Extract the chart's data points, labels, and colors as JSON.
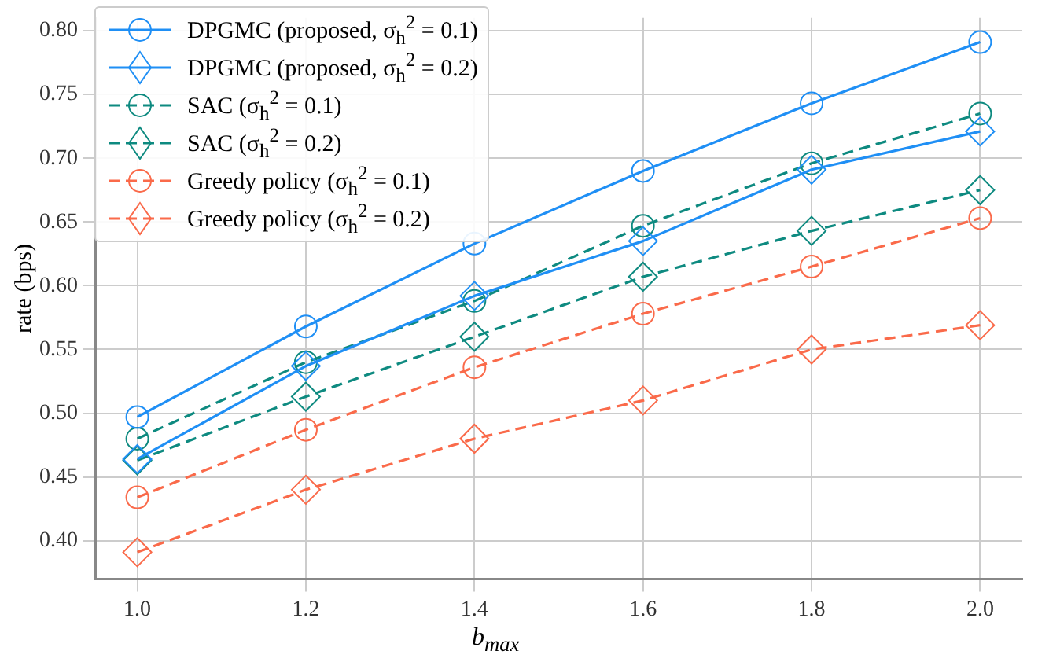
{
  "chart_data": {
    "type": "line",
    "xlabel": "b$_{max}$",
    "ylabel": "rate (bps)",
    "x": [
      1.0,
      1.2,
      1.4,
      1.6,
      1.8,
      2.0
    ],
    "xlim": [
      0.95,
      2.05
    ],
    "xticks": [
      {
        "value": 1.0,
        "label": "1.0"
      },
      1.2,
      1.4,
      1.6,
      1.8,
      {
        "value": 2.0,
        "label": "2.0"
      }
    ],
    "ylim": [
      0.37,
      0.81
    ],
    "yticks": [
      {
        "value": 0.4,
        "label": "0.40"
      },
      0.45,
      {
        "value": 0.5,
        "label": "0.50"
      },
      0.55,
      {
        "value": 0.6,
        "label": "0.60"
      },
      0.65,
      {
        "value": 0.7,
        "label": "0.70"
      },
      0.75,
      {
        "value": 0.8,
        "label": "0.80"
      }
    ],
    "grid": true,
    "legend": "top left",
    "series": [
      {
        "name": "DPGMC (proposed, σ$_{h}$$^{2}$ = 0.1)",
        "color": "#1f8ff5",
        "marker": "circle",
        "line_style": "solid",
        "values": [
          0.497,
          0.568,
          0.633,
          0.69,
          0.743,
          0.791
        ]
      },
      {
        "name": "DPGMC (proposed, σ$_{h}$$^{2}$ = 0.2)",
        "color": "#1f8ff5",
        "marker": "diamond",
        "line_style": "solid",
        "values": [
          0.464,
          0.537,
          0.592,
          0.635,
          0.691,
          0.721
        ]
      },
      {
        "name": "SAC (σ$_{h}$$^{2}$ = 0.1)",
        "color": "#0e8a80",
        "marker": "circle",
        "line_style": "dashed",
        "values": [
          0.48,
          0.54,
          0.588,
          0.647,
          0.696,
          0.735
        ]
      },
      {
        "name": "SAC (σ$_{h}$$^{2}$ = 0.2)",
        "color": "#0e8a80",
        "marker": "diamond",
        "line_style": "dashed",
        "values": [
          0.463,
          0.513,
          0.56,
          0.607,
          0.643,
          0.675
        ]
      },
      {
        "name": "Greedy policy (σ$_{h}$$^{2}$ = 0.1)",
        "color": "#fa6a4a",
        "marker": "circle",
        "line_style": "dashed",
        "values": [
          0.434,
          0.487,
          0.536,
          0.578,
          0.615,
          0.653
        ]
      },
      {
        "name": "Greedy policy (σ$_{h}$$^{2}$ = 0.2)",
        "color": "#fa6a4a",
        "marker": "diamond",
        "line_style": "dashed",
        "values": [
          0.391,
          0.44,
          0.48,
          0.51,
          0.55,
          0.569
        ]
      }
    ]
  }
}
